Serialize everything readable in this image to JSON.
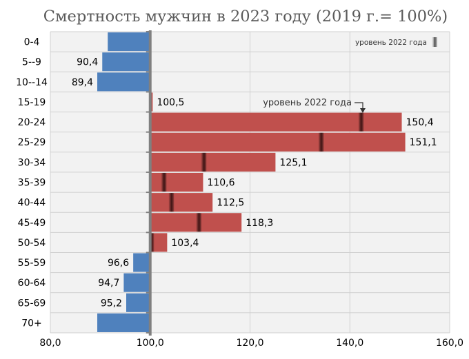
{
  "chart_data": {
    "type": "bar",
    "orientation": "horizontal",
    "title": "Смертность мужчин в 2023 году (2019 г.= 100%)",
    "xlabel": "",
    "ylabel": "",
    "baseline": 100,
    "xlim": [
      80,
      160
    ],
    "x_ticks": [
      "80,0",
      "100,0",
      "120,0",
      "140,0",
      "160,0"
    ],
    "categories": [
      "0-4",
      "5--9",
      "10--14",
      "15-19",
      "20-24",
      "25-29",
      "30-34",
      "35-39",
      "40-44",
      "45-49",
      "50-54",
      "55-59",
      "60-64",
      "65-69",
      "70+"
    ],
    "values": [
      91.5,
      90.4,
      89.4,
      100.5,
      150.4,
      151.1,
      125.1,
      110.6,
      112.5,
      118.3,
      103.4,
      96.6,
      94.7,
      95.2,
      89.4
    ],
    "value_labels": [
      "",
      "90,4",
      "89,4",
      "100,5",
      "150,4",
      "151,1",
      "125,1",
      "110,6",
      "112,5",
      "118,3",
      "103,4",
      "96,6",
      "94,7",
      "95,2",
      ""
    ],
    "level_2022": [
      null,
      null,
      null,
      null,
      142.5,
      134.5,
      111.0,
      103.0,
      104.5,
      110.0,
      100.5,
      null,
      null,
      null,
      null
    ],
    "legend_label": "уровень 2022 года",
    "annotation_label": "уровень 2022 года",
    "grid": true,
    "legend_position": "top-right",
    "colors": {
      "above_baseline": "#c0504d",
      "below_baseline": "#4f81bd",
      "marker": "#3a1010",
      "grid": "#d0d0d0",
      "plot_bg": "#f2f2f2",
      "text": "#000000",
      "title": "#5a5a5a",
      "axis": "#808080"
    }
  }
}
